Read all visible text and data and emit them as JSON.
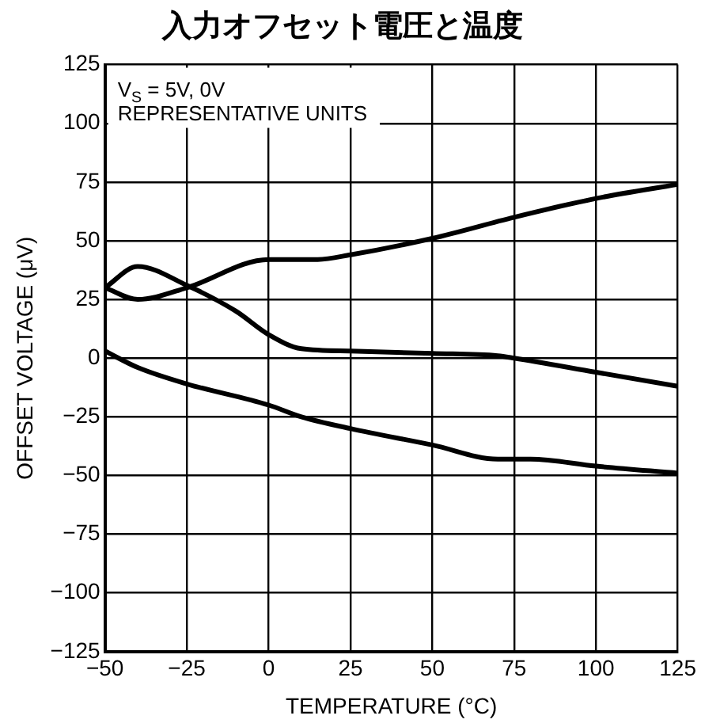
{
  "chart_data": {
    "type": "line",
    "title": "入力オフセット電圧と温度",
    "xlabel": "TEMPERATURE (°C)",
    "ylabel": "OFFSET VOLTAGE (μV)",
    "annotations": [
      "V$_{S}$ = 5V, 0V",
      "REPRESENTATIVE UNITS"
    ],
    "series": [
      {
        "color": "#000000",
        "x": [
          -50,
          -40,
          -25,
          0,
          15,
          25,
          50,
          75,
          100,
          125
        ],
        "values": [
          30,
          25,
          30,
          42,
          42,
          44,
          51,
          60,
          68,
          74
        ]
      },
      {
        "color": "#000000",
        "x": [
          -50,
          -40,
          -25,
          -10,
          0,
          10,
          25,
          50,
          70,
          75,
          100,
          125
        ],
        "values": [
          30,
          39,
          31,
          20,
          10,
          4,
          3,
          2,
          1,
          0,
          -6,
          -12
        ]
      },
      {
        "color": "#000000",
        "x": [
          -50,
          -40,
          -25,
          0,
          10,
          25,
          50,
          70,
          80,
          100,
          125
        ],
        "values": [
          3,
          -4,
          -11,
          -20,
          -25,
          -30,
          -37,
          -43,
          -43,
          -46,
          -49
        ]
      }
    ],
    "xlim": [
      -50,
      125
    ],
    "ylim": [
      -125,
      125
    ],
    "xticks": [
      {
        "value": -50,
        "label": "−50"
      },
      {
        "value": -25,
        "label": "−25"
      },
      0,
      25,
      50,
      75,
      100,
      125
    ],
    "yticks": [
      {
        "value": -125,
        "label": "−125"
      },
      {
        "value": -100,
        "label": "−100"
      },
      {
        "value": -75,
        "label": "−75"
      },
      {
        "value": -50,
        "label": "−50"
      },
      {
        "value": -25,
        "label": "−25"
      },
      0,
      25,
      50,
      75,
      100,
      125
    ],
    "grid": true,
    "marker": "none",
    "line_style": "solid"
  }
}
